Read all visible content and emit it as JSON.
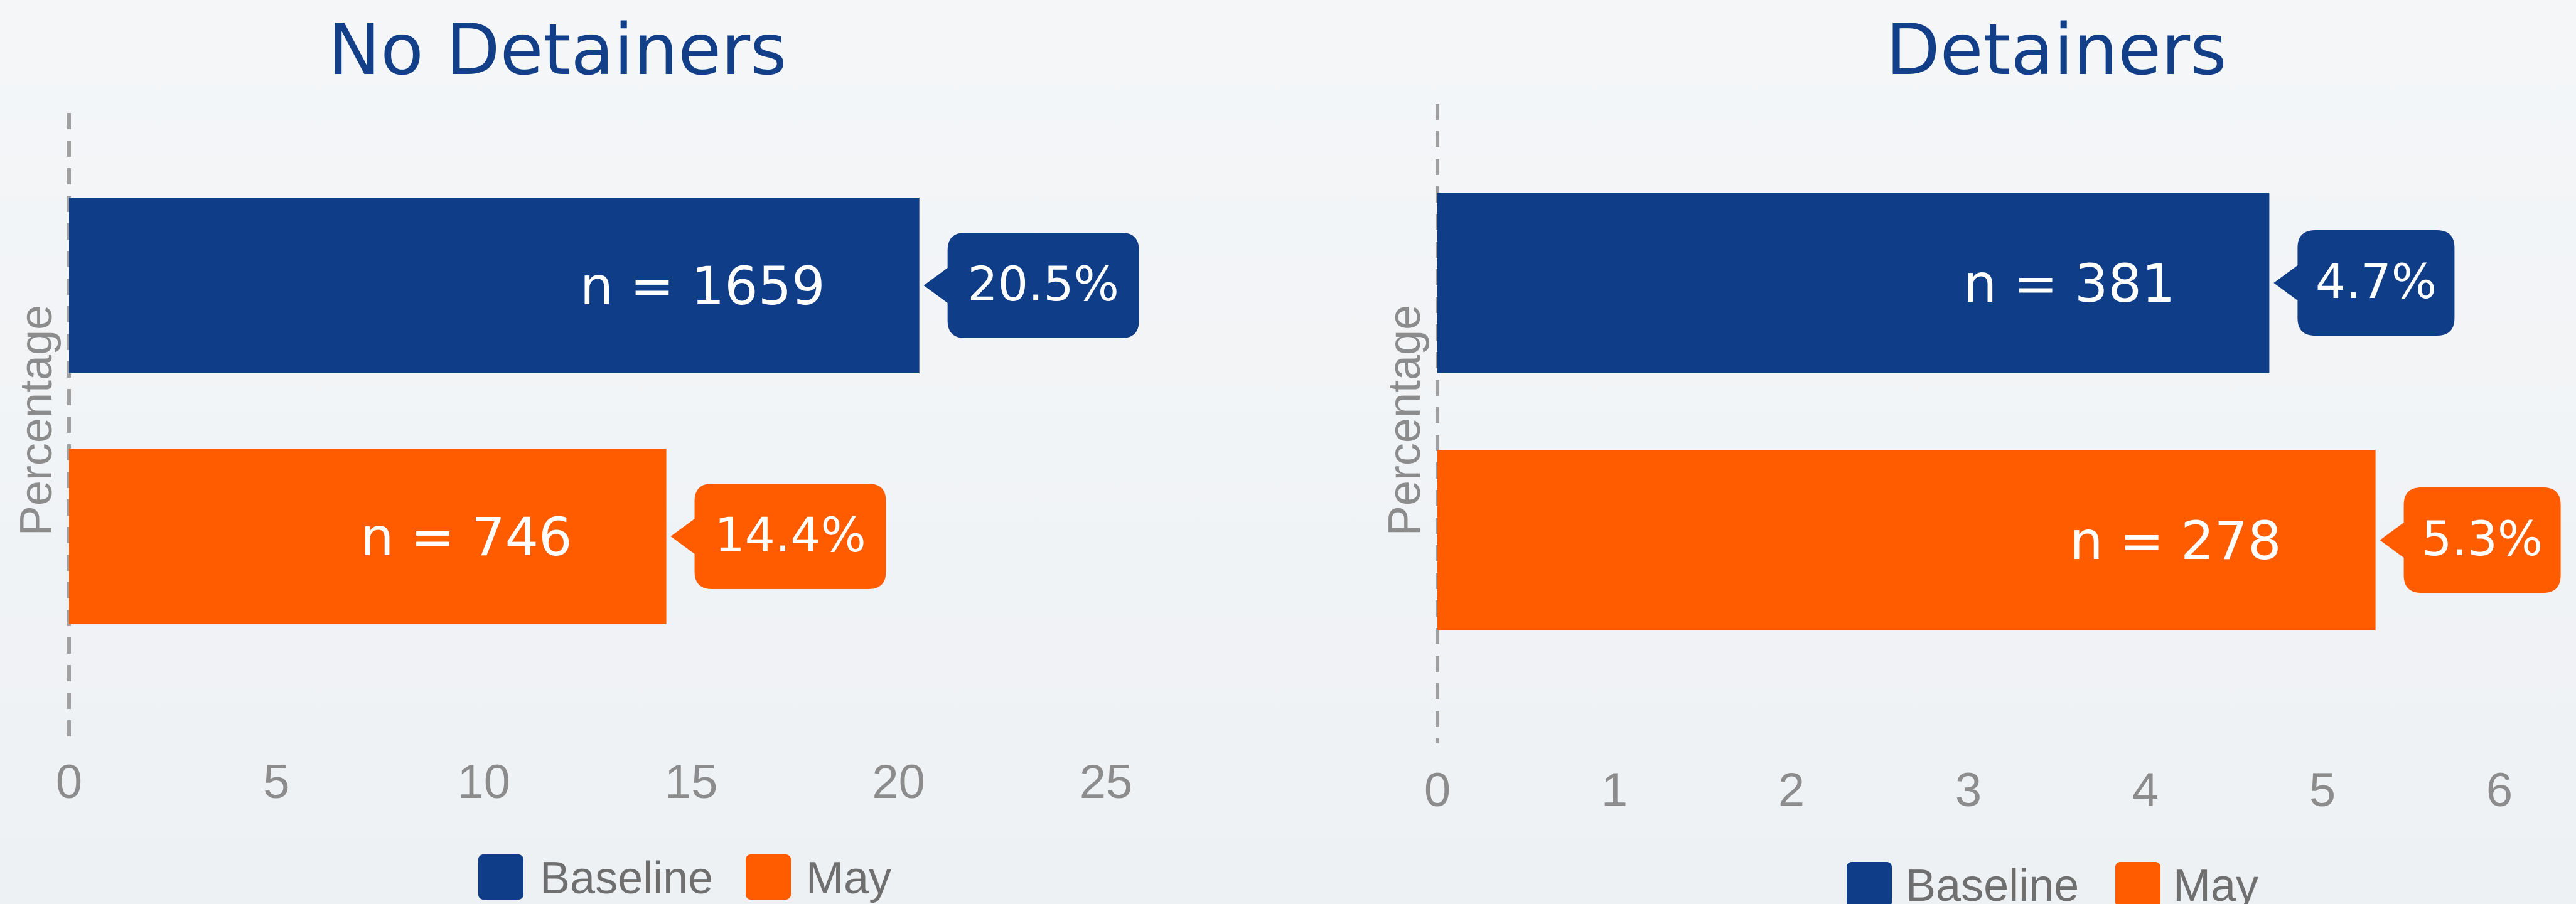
{
  "colors": {
    "baseline": "#0f3d87",
    "may": "#ff5c00",
    "title": "#123f87",
    "axis": "#a0a0a0",
    "tick": "#8c8c8c"
  },
  "chart_data": [
    {
      "type": "bar",
      "orientation": "horizontal",
      "title": "No Detainers",
      "ylabel": "Percentage",
      "xlim": [
        0,
        25
      ],
      "ticks": [
        0,
        5,
        10,
        15,
        20,
        25
      ],
      "tick_labels": [
        "0",
        "5",
        "10",
        "15",
        "20",
        "25"
      ],
      "legend": [
        "Baseline",
        "May"
      ],
      "legend_position": "bottom",
      "bars": [
        {
          "series": "Baseline",
          "value": 20.5,
          "n_label": "n = 1659",
          "pct_label": "20.5%"
        },
        {
          "series": "May",
          "value": 14.4,
          "n_label": "n = 746",
          "pct_label": "14.4%"
        }
      ]
    },
    {
      "type": "bar",
      "orientation": "horizontal",
      "title": "Detainers",
      "ylabel": "Percentage",
      "xlim": [
        0,
        6
      ],
      "ticks": [
        0,
        1,
        2,
        3,
        4,
        5,
        6
      ],
      "tick_labels": [
        "0",
        "1",
        "2",
        "3",
        "4",
        "5",
        "6"
      ],
      "legend": [
        "Baseline",
        "May"
      ],
      "legend_position": "bottom",
      "bars": [
        {
          "series": "Baseline",
          "value": 4.7,
          "n_label": "n = 381",
          "pct_label": "4.7%"
        },
        {
          "series": "May",
          "value": 5.3,
          "n_label": "n = 278",
          "pct_label": "5.3%"
        }
      ]
    }
  ]
}
